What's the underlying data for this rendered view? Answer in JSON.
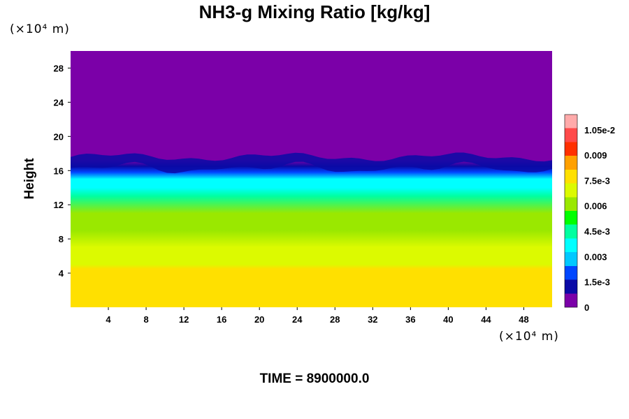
{
  "chart_data": {
    "type": "heatmap",
    "title": "NH3-g Mixing Ratio [kg/kg]",
    "xlabel": "",
    "ylabel": "Height",
    "x_unit": "(×10⁴ m)",
    "y_unit": "(×10⁴ m)",
    "xlim": [
      0,
      51
    ],
    "ylim": [
      0,
      30
    ],
    "x_ticks": [
      4,
      8,
      12,
      16,
      20,
      24,
      28,
      32,
      36,
      40,
      44,
      48
    ],
    "y_ticks": [
      4,
      8,
      12,
      16,
      20,
      24,
      28
    ],
    "profile": {
      "height": [
        0,
        4.5,
        5,
        7,
        9,
        11,
        13,
        14,
        15,
        15.8,
        16.5,
        17.2,
        17.8,
        18.3,
        30
      ],
      "value": [
        0.0081,
        0.0081,
        0.0072,
        0.0067,
        0.0063,
        0.0059,
        0.0048,
        0.004,
        0.0033,
        0.0024,
        0.0012,
        0.0006,
        0.0002,
        0.0,
        0.0
      ]
    },
    "colorbar": {
      "min": 0,
      "max": 0.0114,
      "tick_values": [
        0,
        0.0015,
        0.003,
        0.0045,
        0.006,
        0.0075,
        0.009,
        0.0105
      ],
      "tick_labels": [
        "0",
        "1.5e-3",
        "0.003",
        "4.5e-3",
        "0.006",
        "7.5e-3",
        "0.009",
        "1.05e-2"
      ],
      "colors": [
        "#7b00a8",
        "#0a0aa6",
        "#0046ff",
        "#00c8ff",
        "#00ffff",
        "#00ffa0",
        "#00ff00",
        "#9ae800",
        "#dcfa00",
        "#ffe000",
        "#ffa000",
        "#ff3000",
        "#ff4a4a",
        "#ffaaaa"
      ]
    },
    "annotation": "TIME = 8900000.0"
  }
}
